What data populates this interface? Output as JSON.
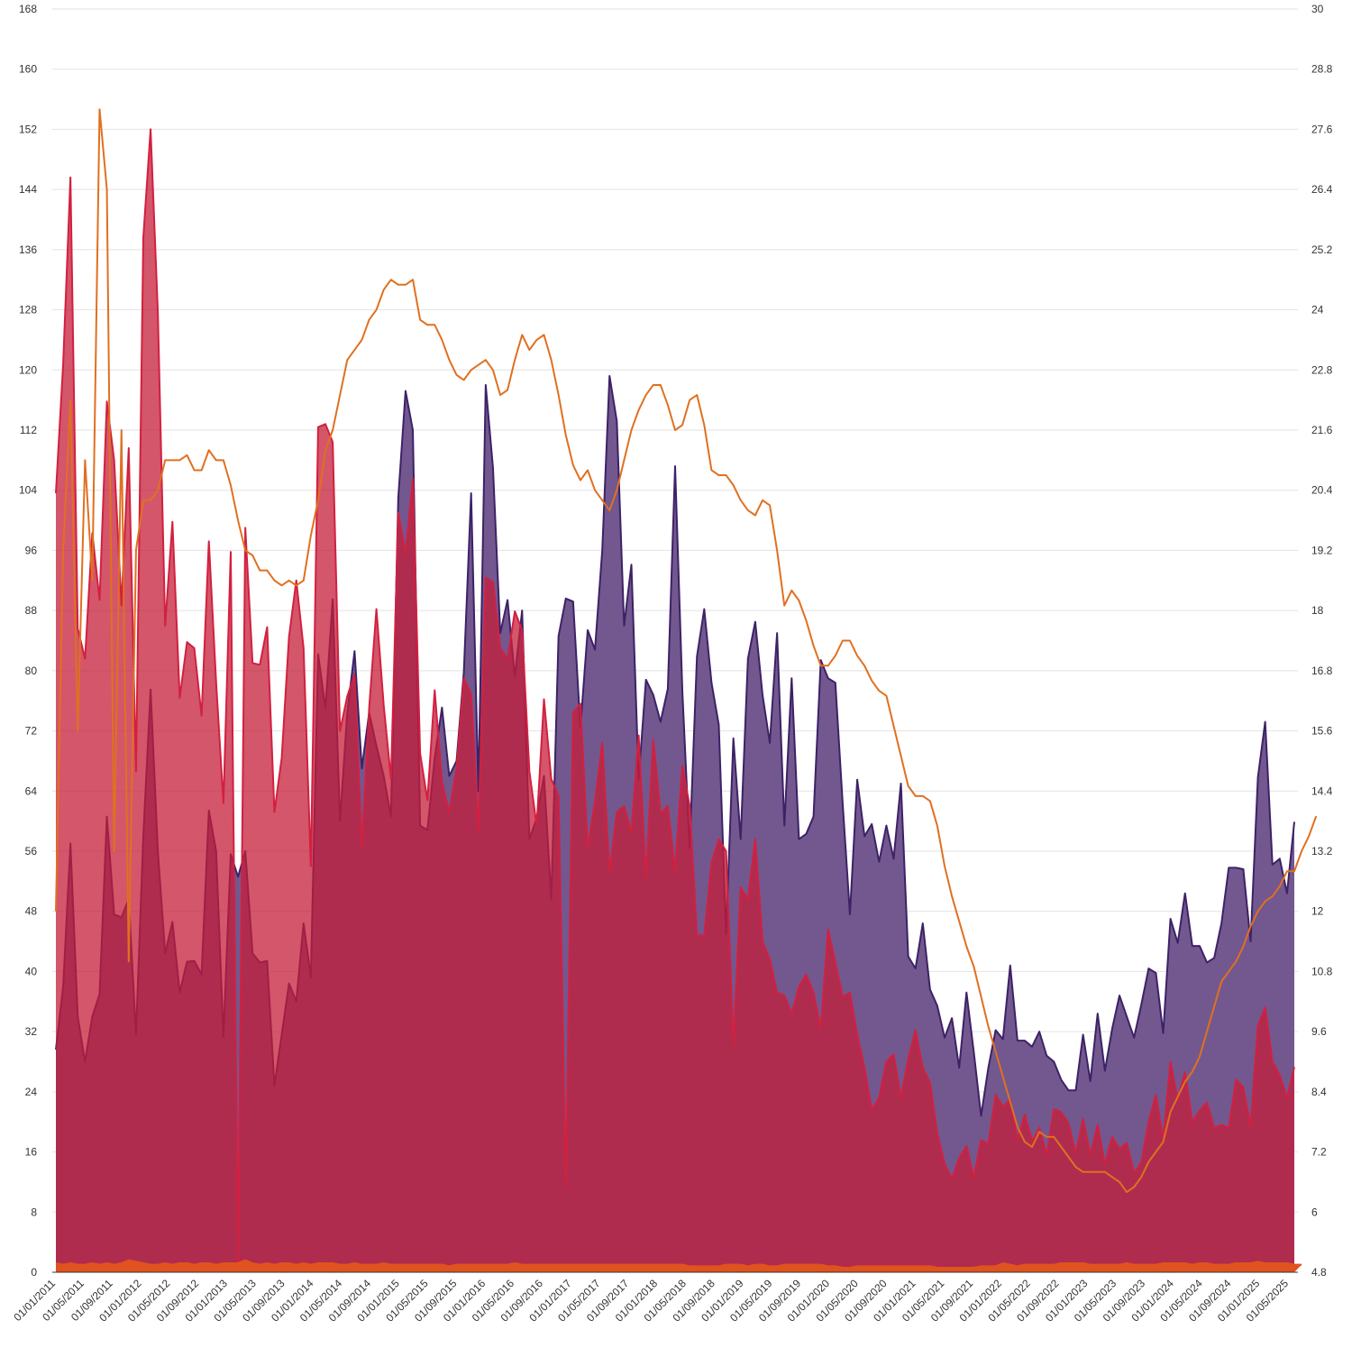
{
  "chart_data": {
    "type": "area",
    "x_labels": [
      "01/01/2011",
      "01/05/2011",
      "01/09/2011",
      "01/01/2012",
      "01/05/2012",
      "01/09/2012",
      "01/01/2013",
      "01/05/2013",
      "01/09/2013",
      "01/01/2014",
      "01/05/2014",
      "01/09/2014",
      "01/01/2015",
      "01/05/2015",
      "01/09/2015",
      "01/01/2016",
      "01/05/2016",
      "01/09/2016",
      "01/01/2017",
      "01/05/2017",
      "01/09/2017",
      "01/01/2018",
      "01/05/2018",
      "01/09/2018",
      "01/01/2019",
      "01/05/2019",
      "01/09/2019",
      "01/01/2020",
      "01/05/2020",
      "01/09/2020",
      "01/01/2021",
      "01/05/2021",
      "01/09/2021",
      "01/01/2022",
      "01/05/2022",
      "01/09/2022",
      "01/01/2023",
      "01/05/2023",
      "01/09/2023",
      "01/01/2024",
      "01/05/2024",
      "01/09/2024",
      "01/01/2025",
      "01/05/2025"
    ],
    "left_axis": {
      "min": 0,
      "max": 168,
      "ticks": [
        0,
        8,
        16,
        24,
        32,
        40,
        48,
        56,
        64,
        72,
        80,
        88,
        96,
        104,
        112,
        120,
        128,
        136,
        144,
        152,
        160,
        168
      ]
    },
    "right_axis": {
      "min": 4.8,
      "max": 30,
      "ticks": [
        "4.8",
        "6",
        "7.2",
        "8.4",
        "9.6",
        "10.8",
        "12",
        "13.2",
        "14.4",
        "15.6",
        "16.8",
        "18",
        "19.2",
        "20.4",
        "21.6",
        "22.8",
        "24",
        "25.2",
        "26.4",
        "27.6",
        "28.8",
        "30"
      ]
    },
    "grid": true,
    "legend": "none",
    "series": [
      {
        "type": "area",
        "axis": "left",
        "color": "#72588f",
        "stroke": "#3d2266",
        "values": [
          29.6,
          38,
          57,
          34,
          28,
          34,
          37,
          60.6,
          47.6,
          47.2,
          49.6,
          31.6,
          58,
          77.5,
          56,
          42.4,
          46.6,
          37.2,
          41.3,
          41.4,
          39.6,
          61.4,
          56,
          31.3,
          55.6,
          52.6,
          56,
          42.4,
          41.2,
          41.4,
          24.8,
          31.6,
          38.4,
          36,
          46.4,
          39.2,
          82.2,
          75,
          89.5,
          60,
          74.4,
          82.6,
          67,
          74.4,
          70,
          66,
          60.6,
          103,
          117.2,
          112,
          59.4,
          58.8,
          68.4,
          75.1,
          66,
          68,
          79.8,
          103.6,
          64,
          118,
          107,
          85,
          89.4,
          79.2,
          88,
          57.6,
          60.4,
          66,
          49.6,
          84.6,
          89.6,
          89.2,
          72.4,
          85.4,
          82.8,
          96,
          119.2,
          113.2,
          86,
          94.1,
          65.6,
          78.8,
          76.8,
          73.2,
          77.6,
          107.2,
          77.2,
          56.4,
          81.9,
          88.2,
          78.4,
          72.8,
          45,
          71,
          57.6,
          81.6,
          86.5,
          76.8,
          70.4,
          85,
          59.4,
          79,
          57.6,
          58.3,
          60.6,
          81.4,
          79,
          78.4,
          62.4,
          47.6,
          65.5,
          58,
          59.6,
          54.6,
          59.4,
          55,
          65,
          42,
          40.4,
          46.4,
          37.6,
          35.4,
          31.2,
          33.8,
          27.2,
          37.2,
          29.3,
          20.8,
          27.2,
          32.2,
          31,
          40.8,
          30.8,
          30.8,
          30,
          32,
          28.8,
          28,
          25.6,
          24.2,
          24.2,
          31.6,
          25.4,
          34.4,
          26.8,
          32.4,
          36.8,
          34,
          31.2,
          35.6,
          40.4,
          39.8,
          31.8,
          47,
          43.8,
          50.4,
          43.4,
          43.4,
          41.2,
          41.8,
          46.4,
          53.8,
          53.8,
          53.6,
          44,
          65.8,
          73.2,
          54.2,
          55,
          50.4,
          59.9
        ]
      },
      {
        "type": "area",
        "axis": "left",
        "color": "#c41e3a",
        "opacity": 0.75,
        "stroke": "#d3203f",
        "values": [
          103.6,
          120.8,
          145.6,
          85.6,
          81.6,
          98.3,
          89.4,
          115.8,
          108,
          88.7,
          109.6,
          66.6,
          137.6,
          152,
          127.6,
          86,
          99.8,
          76.4,
          83.8,
          83,
          74,
          97.2,
          78.4,
          62.4,
          95.8,
          1,
          99,
          81,
          80.8,
          85.8,
          61.2,
          68.4,
          84.5,
          92,
          83,
          54,
          112.4,
          112.8,
          110.4,
          72,
          76.6,
          79.5,
          56.4,
          75,
          88.2,
          75.4,
          65.6,
          101,
          95.6,
          105.6,
          69,
          62.8,
          77.4,
          65.2,
          61.2,
          67,
          79,
          76.9,
          58.6,
          92.4,
          91.8,
          83,
          81.6,
          87.9,
          85.4,
          66.6,
          59.4,
          76.2,
          65.6,
          63.4,
          11.2,
          74.4,
          75.6,
          56.4,
          62.6,
          70.4,
          53.2,
          61.2,
          62,
          58.6,
          71.4,
          52.4,
          70.8,
          61,
          62,
          53.4,
          67.4,
          62,
          44.8,
          44.8,
          54.4,
          57.6,
          56,
          30,
          51.2,
          49.6,
          57.6,
          44,
          41.6,
          37.2,
          36.8,
          34.4,
          38,
          39.6,
          37.2,
          32.4,
          45.6,
          41.2,
          36.6,
          37.2,
          31.6,
          27.2,
          21.6,
          23.2,
          28,
          29,
          23.2,
          28.4,
          32.2,
          27.2,
          25.2,
          18.4,
          14.4,
          12.4,
          15.2,
          16.8,
          12.6,
          17.6,
          17,
          23.6,
          22,
          23,
          17.6,
          21,
          17.4,
          19.2,
          15.6,
          21.7,
          21.3,
          19.8,
          15.8,
          20.4,
          15.6,
          19.6,
          14.4,
          18,
          16.4,
          17.2,
          13.2,
          14.6,
          20,
          23.6,
          17.6,
          28,
          23,
          26.6,
          20,
          21.5,
          22.6,
          19.2,
          19.6,
          19.2,
          25.6,
          24.6,
          19.4,
          32.8,
          35.2,
          28,
          26.2,
          23.2,
          27.3
        ]
      },
      {
        "type": "area",
        "axis": "left",
        "color": "#e0531e",
        "stroke": "#e0531e",
        "values": [
          1.2,
          1,
          1.2,
          1,
          1,
          1.2,
          1,
          1.2,
          1,
          1.2,
          1.6,
          1.4,
          1.2,
          1,
          1,
          1.2,
          1,
          1.2,
          1.2,
          1,
          1.2,
          1.2,
          1,
          1.2,
          1.2,
          1.2,
          1.6,
          1.2,
          1,
          1.2,
          1,
          1.2,
          1.2,
          1,
          1.2,
          1,
          1.2,
          1.2,
          1.2,
          1,
          1,
          1.2,
          1,
          1,
          1,
          1.2,
          1,
          1,
          1,
          1,
          1,
          1,
          1,
          1,
          0.8,
          1,
          1,
          1,
          1,
          1,
          1,
          1,
          1,
          1.2,
          1,
          1,
          1,
          1,
          1,
          1,
          1,
          1,
          1,
          1,
          1,
          1,
          1,
          1,
          1,
          1,
          1,
          1,
          1,
          1,
          1,
          1,
          1,
          0.8,
          0.8,
          0.8,
          0.8,
          0.8,
          1,
          1,
          1,
          0.8,
          1,
          1,
          0.8,
          0.8,
          1,
          1,
          1,
          1,
          1,
          1,
          0.8,
          0.8,
          0.6,
          0.6,
          0.8,
          0.8,
          0.8,
          0.8,
          0.8,
          0.8,
          0.8,
          0.8,
          0.8,
          0.8,
          0.8,
          0.6,
          0.6,
          0.6,
          0.6,
          0.6,
          0.6,
          0.8,
          0.8,
          0.8,
          1.2,
          1,
          0.8,
          1,
          1,
          1,
          1,
          1,
          1.2,
          1.2,
          1.2,
          1.2,
          1,
          1,
          1,
          1,
          1,
          1.2,
          1,
          1,
          1,
          1,
          1.2,
          1.2,
          1.2,
          1.2,
          1,
          1.2,
          1.2,
          1,
          1,
          1,
          1.2,
          1.2,
          1.2,
          1.4,
          1.2,
          1.2,
          1.2,
          1.2,
          1,
          1
        ]
      },
      {
        "type": "line",
        "axis": "right",
        "color": "#e07020",
        "stroke_width": 2,
        "values": [
          12,
          19.2,
          22.2,
          15.6,
          21,
          18.6,
          28,
          26.4,
          13.2,
          21.6,
          11,
          19.2,
          20.2,
          20.2,
          20.4,
          21,
          21,
          21,
          21.1,
          20.8,
          20.8,
          21.2,
          21,
          21,
          20.5,
          19.8,
          19.2,
          19.1,
          18.8,
          18.8,
          18.6,
          18.5,
          18.6,
          18.5,
          18.6,
          19.5,
          20.2,
          21.2,
          21.6,
          22.3,
          23,
          23.2,
          23.4,
          23.8,
          24,
          24.4,
          24.6,
          24.5,
          24.5,
          24.6,
          23.8,
          23.7,
          23.7,
          23.4,
          23,
          22.7,
          22.6,
          22.8,
          22.9,
          23,
          22.8,
          22.3,
          22.4,
          23,
          23.5,
          23.2,
          23.4,
          23.5,
          23,
          22.3,
          21.5,
          20.9,
          20.6,
          20.8,
          20.4,
          20.2,
          20,
          20.4,
          21,
          21.6,
          22,
          22.3,
          22.5,
          22.5,
          22.1,
          21.6,
          21.7,
          22.2,
          22.3,
          21.7,
          20.8,
          20.7,
          20.7,
          20.5,
          20.2,
          20,
          19.9,
          20.2,
          20.1,
          19.2,
          18.1,
          18.4,
          18.2,
          17.8,
          17.3,
          16.9,
          16.9,
          17.1,
          17.4,
          17.4,
          17.1,
          16.9,
          16.6,
          16.4,
          16.3,
          15.7,
          15.1,
          14.5,
          14.3,
          14.3,
          14.2,
          13.7,
          12.9,
          12.3,
          11.8,
          11.3,
          10.9,
          10.3,
          9.7,
          9.2,
          8.7,
          8.2,
          7.7,
          7.4,
          7.3,
          7.6,
          7.5,
          7.5,
          7.3,
          7.1,
          6.9,
          6.8,
          6.8,
          6.8,
          6.8,
          6.7,
          6.6,
          6.4,
          6.5,
          6.7,
          7,
          7.2,
          7.4,
          8,
          8.3,
          8.6,
          8.8,
          9.1,
          9.6,
          10.1,
          10.6,
          10.8,
          11,
          11.3,
          11.7,
          12,
          12.2,
          12.3,
          12.5,
          12.8,
          12.8,
          13.2,
          13.5,
          13.9
        ]
      }
    ]
  }
}
